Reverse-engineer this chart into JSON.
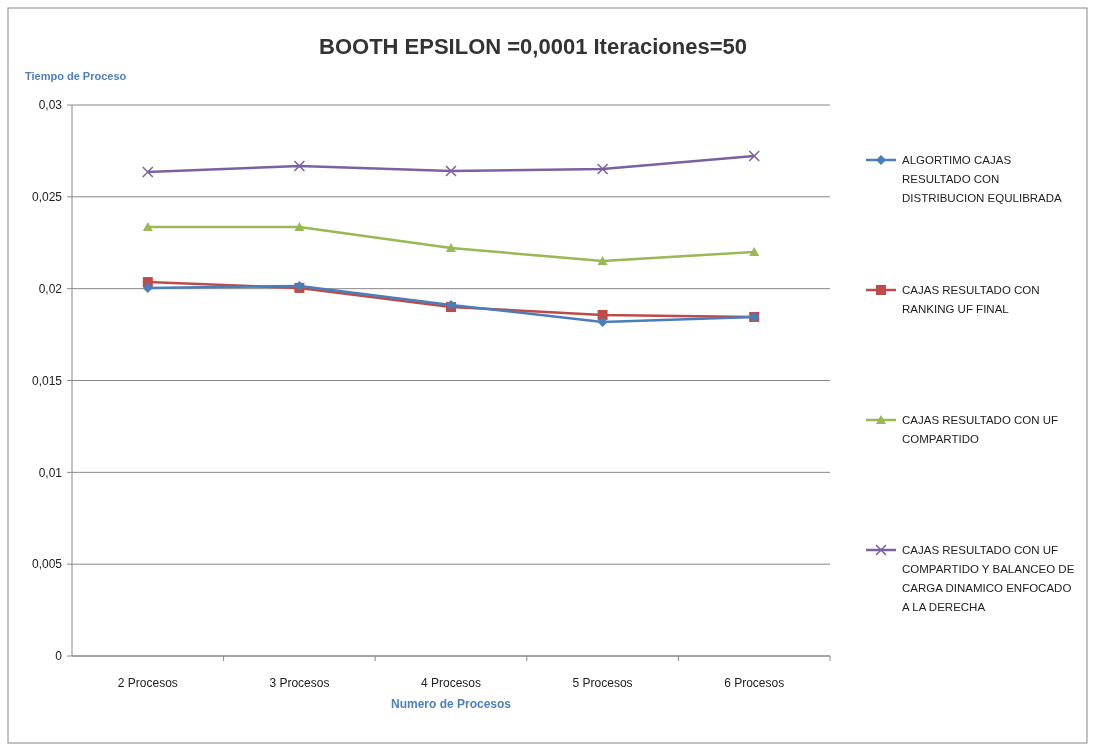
{
  "chart_data": {
    "type": "line",
    "title": "BOOTH  EPSILON =0,0001    Iteraciones=50",
    "xlabel": "Numero de Procesos",
    "ylabel": "Tiempo de Proceso",
    "categories": [
      "2 Procesos",
      "3 Procesos",
      "4 Procesos",
      "5 Procesos",
      "6 Procesos"
    ],
    "ylim": [
      0,
      0.03
    ],
    "yticks": [
      0,
      {
        "value": 0.005,
        "label": "0,005"
      },
      {
        "value": 0.01,
        "label": "0,01"
      },
      {
        "value": 0.015,
        "label": "0,015"
      },
      {
        "value": 0.02,
        "label": "0,02"
      },
      {
        "value": 0.025,
        "label": "0,025"
      },
      {
        "value": 0.03,
        "label": "0,03"
      }
    ],
    "grid": "y",
    "legend": "right",
    "series": [
      {
        "name": "ALGORTIMO CAJAS RESULTADO CON DISTRIBUCION EQULIBRADA",
        "color": "#4a7ebb",
        "marker": "diamond",
        "values": [
          0.02004,
          0.02015,
          0.01911,
          0.01819,
          0.01846
        ]
      },
      {
        "name": "CAJAS RESULTADO CON RANKING UF FINAL",
        "color": "#be4b48",
        "marker": "square",
        "values": [
          0.02036,
          0.02004,
          0.019,
          0.01857,
          0.01846
        ]
      },
      {
        "name": "CAJAS RESULTADO CON UF COMPARTIDO",
        "color": "#98b954",
        "marker": "triangle",
        "values": [
          0.02336,
          0.02336,
          0.02221,
          0.02151,
          0.022
        ]
      },
      {
        "name": "CAJAS RESULTADO CON UF COMPARTIDO Y BALANCEO DE CARGA DINAMICO ENFOCADO A LA DERECHA",
        "color": "#7d60a0",
        "marker": "cross",
        "values": [
          0.02635,
          0.02668,
          0.02641,
          0.02652,
          0.02722
        ]
      }
    ]
  }
}
